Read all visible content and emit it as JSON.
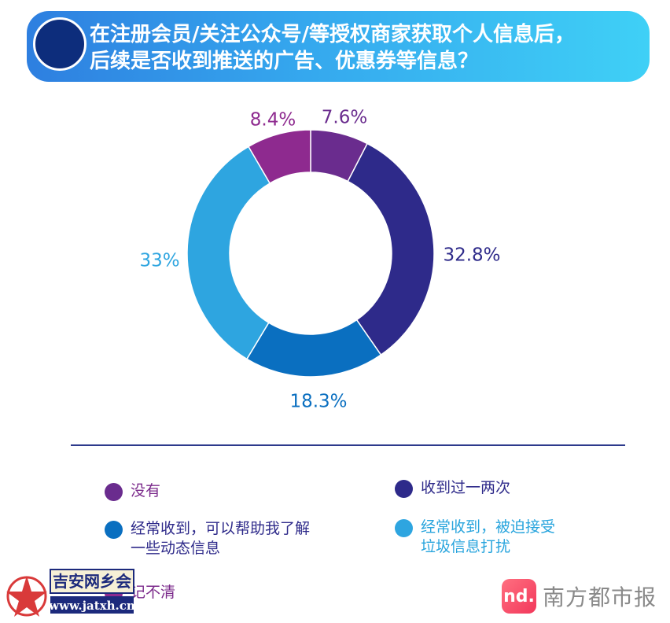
{
  "header": {
    "title_line1": "在注册会员/关注公众号/等授权商家获取个人信息后，",
    "title_line2": "后续是否收到推送的广告、优惠券等信息？"
  },
  "chart_data": {
    "type": "pie",
    "variant": "donut",
    "title": "在注册会员/关注公众号/等授权商家获取个人信息后，后续是否收到推送的广告、优惠券等信息？",
    "slices": [
      {
        "name": "没有",
        "value": 7.6,
        "label": "7.6%",
        "color": "#6a2c8e"
      },
      {
        "name": "收到过一两次",
        "value": 32.8,
        "label": "32.8%",
        "color": "#2e2a8a"
      },
      {
        "name": "经常收到，可以帮助我了解一些动态信息",
        "value": 18.3,
        "label": "18.3%",
        "color": "#0a6fc0"
      },
      {
        "name": "经常收到，被迫接受垃圾信息打扰",
        "value": 33,
        "label": "33%",
        "color": "#2ea5e0"
      },
      {
        "name": "记不清",
        "value": 8.4,
        "label": "8.4%",
        "color": "#8e2a8f"
      }
    ],
    "label_colors": [
      "#6a2c8e",
      "#2e2a8a",
      "#0a6fc0",
      "#2ea5e0",
      "#8e2a8f"
    ]
  },
  "legend": {
    "items": [
      {
        "label": "没有",
        "color": "#6a2c8e"
      },
      {
        "label": "收到过一两次",
        "color": "#2e2a8a"
      },
      {
        "label": "经常收到，可以帮助我了解一些动态信息",
        "line1": "经常收到，可以帮助我了解",
        "line2": "一些动态信息",
        "color": "#0a6fc0"
      },
      {
        "label": "经常收到，被迫接受垃圾信息打扰",
        "line1": "经常收到，被迫接受",
        "line2": "垃圾信息打扰",
        "color": "#2ea5e0"
      },
      {
        "label": "记不清",
        "color": "#8e2a8f"
      }
    ]
  },
  "watermark": {
    "site_text": "吉安网乡会",
    "url": "www.jatxh.cn"
  },
  "brand": {
    "mark": "nd.",
    "name": "南方都市报"
  }
}
